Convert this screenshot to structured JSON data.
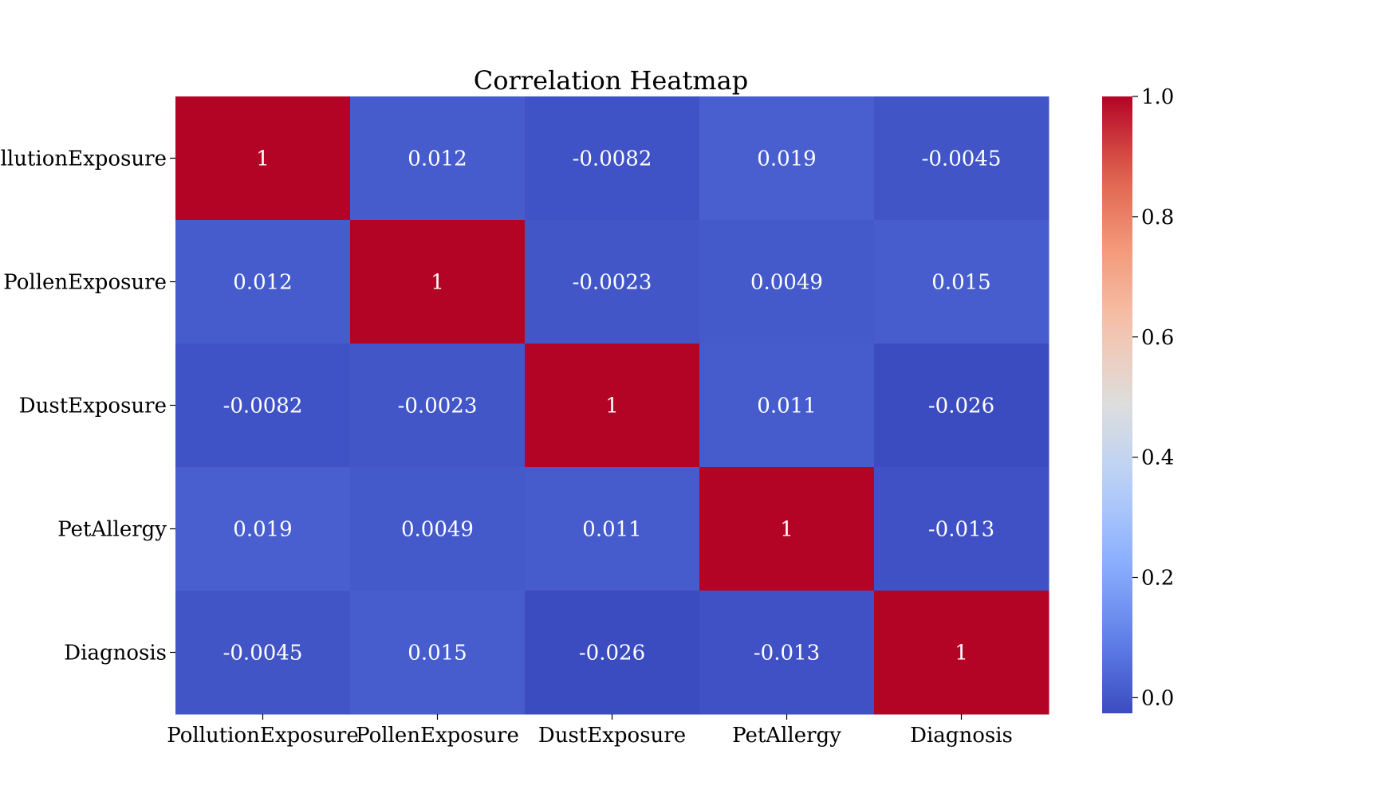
{
  "chart_data": {
    "type": "heatmap",
    "title": "Correlation Heatmap",
    "x_categories": [
      "PollutionExposure",
      "PollenExposure",
      "DustExposure",
      "PetAllergy",
      "Diagnosis"
    ],
    "y_categories": [
      "PollutionExposure",
      "PollenExposure",
      "DustExposure",
      "PetAllergy",
      "Diagnosis"
    ],
    "values": [
      [
        1,
        0.012,
        -0.0082,
        0.019,
        -0.0045
      ],
      [
        0.012,
        1,
        -0.0023,
        0.0049,
        0.015
      ],
      [
        -0.0082,
        -0.0023,
        1,
        0.011,
        -0.026
      ],
      [
        0.019,
        0.0049,
        0.011,
        1,
        -0.013
      ],
      [
        -0.0045,
        0.015,
        -0.026,
        -0.013,
        1
      ]
    ],
    "cell_labels": [
      [
        "1",
        "0.012",
        "-0.0082",
        "0.019",
        "-0.0045"
      ],
      [
        "0.012",
        "1",
        "-0.0023",
        "0.0049",
        "0.015"
      ],
      [
        "-0.0082",
        "-0.0023",
        "1",
        "0.011",
        "-0.026"
      ],
      [
        "0.019",
        "0.0049",
        "0.011",
        "1",
        "-0.013"
      ],
      [
        "-0.0045",
        "0.015",
        "-0.026",
        "-0.013",
        "1"
      ]
    ],
    "colorbar": {
      "colormap": "coolwarm",
      "vmin": -0.026,
      "vmax": 1,
      "ticks": [
        0.0,
        0.2,
        0.4,
        0.6,
        0.8,
        1.0
      ],
      "tick_labels": [
        "0.0",
        "0.2",
        "0.4",
        "0.6",
        "0.8",
        "1.0"
      ]
    },
    "xlabel": "",
    "ylabel": "",
    "grid": false
  }
}
